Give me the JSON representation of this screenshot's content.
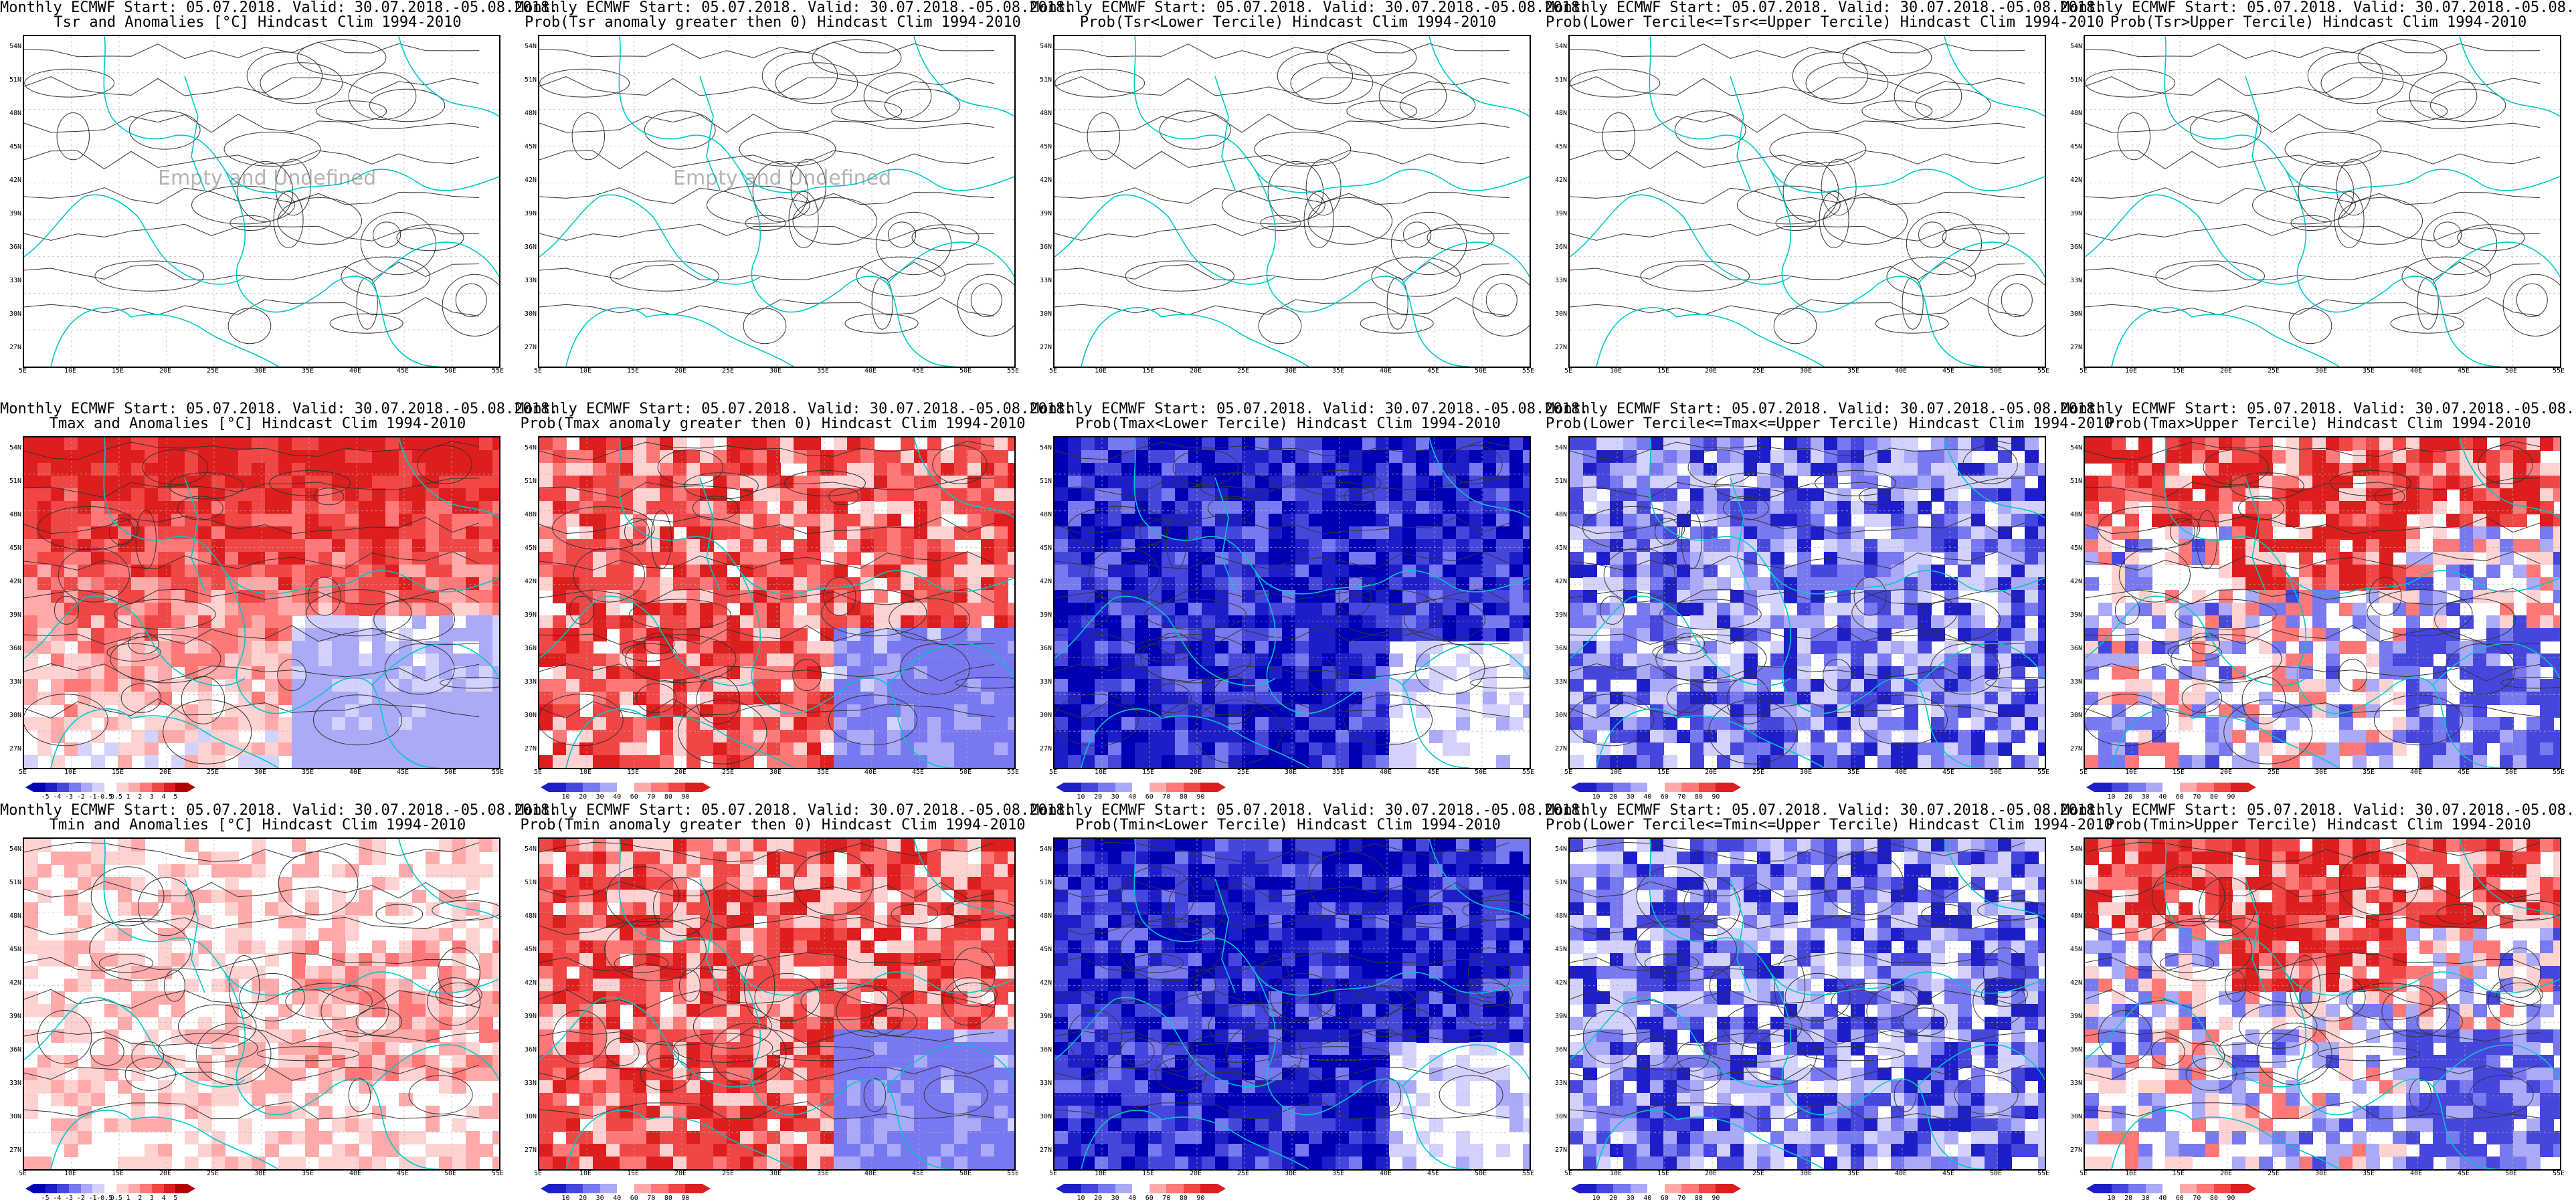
{
  "title_line1": "Monthly ECMWF Start: 05.07.2018. Valid: 30.07.2018.-05.08.2018.",
  "lat_labels": [
    "54N",
    "51N",
    "48N",
    "45N",
    "42N",
    "39N",
    "36N",
    "33N",
    "30N",
    "27N"
  ],
  "lon_labels": [
    "5E",
    "10E",
    "15E",
    "20E",
    "25E",
    "30E",
    "35E",
    "40E",
    "45E",
    "50E",
    "55E"
  ],
  "anomaly_ticks": [
    "-5",
    "-4",
    "-3",
    "-2",
    "-1",
    "-0.5",
    "0.5",
    "1",
    "2",
    "3",
    "4",
    "5"
  ],
  "prob_ticks": [
    "10",
    "20",
    "30",
    "40",
    "60",
    "70",
    "80",
    "90"
  ],
  "watermark": "Empty and Undefined",
  "colors": {
    "coast": "#00c8c8",
    "contour": "#333333",
    "blues": [
      "#0000b4",
      "#1e1ec8",
      "#4646dc",
      "#7878f0",
      "#aaaaf8",
      "#d2d2fc"
    ],
    "reds": [
      "#ffd2d2",
      "#ffaaaa",
      "#ff7878",
      "#f04646",
      "#dc1e1e",
      "#b40000"
    ]
  },
  "rows": [
    {
      "panels": [
        {
          "title2": "Tsr and Anomalies [°C] Hindcast Clim 1994-2010",
          "scheme": "none",
          "colorbar": "none",
          "watermark": true
        },
        {
          "title2": "Prob(Tsr anomaly greater then 0) Hindcast Clim 1994-2010",
          "scheme": "none",
          "colorbar": "none",
          "watermark": true
        },
        {
          "title2": "Prob(Tsr<Lower Tercile) Hindcast Clim 1994-2010",
          "scheme": "none",
          "colorbar": "none",
          "watermark": false
        },
        {
          "title2": "Prob(Lower Tercile<=Tsr<=Upper Tercile) Hindcast Clim 1994-2010",
          "scheme": "none",
          "colorbar": "none",
          "watermark": false
        },
        {
          "title2": "Prob(Tsr>Upper Tercile) Hindcast Clim 1994-2010",
          "scheme": "none",
          "colorbar": "none",
          "watermark": false
        }
      ]
    },
    {
      "panels": [
        {
          "title2": "Tmax and Anomalies [°C] Hindcast Clim 1994-2010",
          "scheme": "anom-warm",
          "colorbar": "anomaly",
          "watermark": false
        },
        {
          "title2": "Prob(Tmax anomaly greater then 0) Hindcast Clim 1994-2010",
          "scheme": "prob-warm",
          "colorbar": "prob",
          "watermark": false
        },
        {
          "title2": "Prob(Tmax<Lower Tercile) Hindcast Clim 1994-2010",
          "scheme": "prob-cold",
          "colorbar": "prob",
          "watermark": false
        },
        {
          "title2": "Prob(Lower Tercile<=Tmax<=Upper Tercile) Hindcast Clim 1994-2010",
          "scheme": "prob-mid",
          "colorbar": "prob",
          "watermark": false
        },
        {
          "title2": "Prob(Tmax>Upper Tercile) Hindcast Clim 1994-2010",
          "scheme": "prob-upper",
          "colorbar": "prob",
          "watermark": false
        }
      ]
    },
    {
      "panels": [
        {
          "title2": "Tmin and Anomalies [°C] Hindcast Clim 1994-2010",
          "scheme": "anom-mild",
          "colorbar": "anomaly",
          "watermark": false
        },
        {
          "title2": "Prob(Tmin anomaly greater then 0) Hindcast Clim 1994-2010",
          "scheme": "prob-warm",
          "colorbar": "prob",
          "watermark": false
        },
        {
          "title2": "Prob(Tmin<Lower Tercile) Hindcast Clim 1994-2010",
          "scheme": "prob-cold",
          "colorbar": "prob",
          "watermark": false
        },
        {
          "title2": "Prob(Lower Tercile<=Tmin<=Upper Tercile) Hindcast Clim 1994-2010",
          "scheme": "prob-mid",
          "colorbar": "prob",
          "watermark": false
        },
        {
          "title2": "Prob(Tmin>Upper Tercile) Hindcast Clim 1994-2010",
          "scheme": "prob-upper",
          "colorbar": "prob",
          "watermark": false
        }
      ]
    }
  ]
}
